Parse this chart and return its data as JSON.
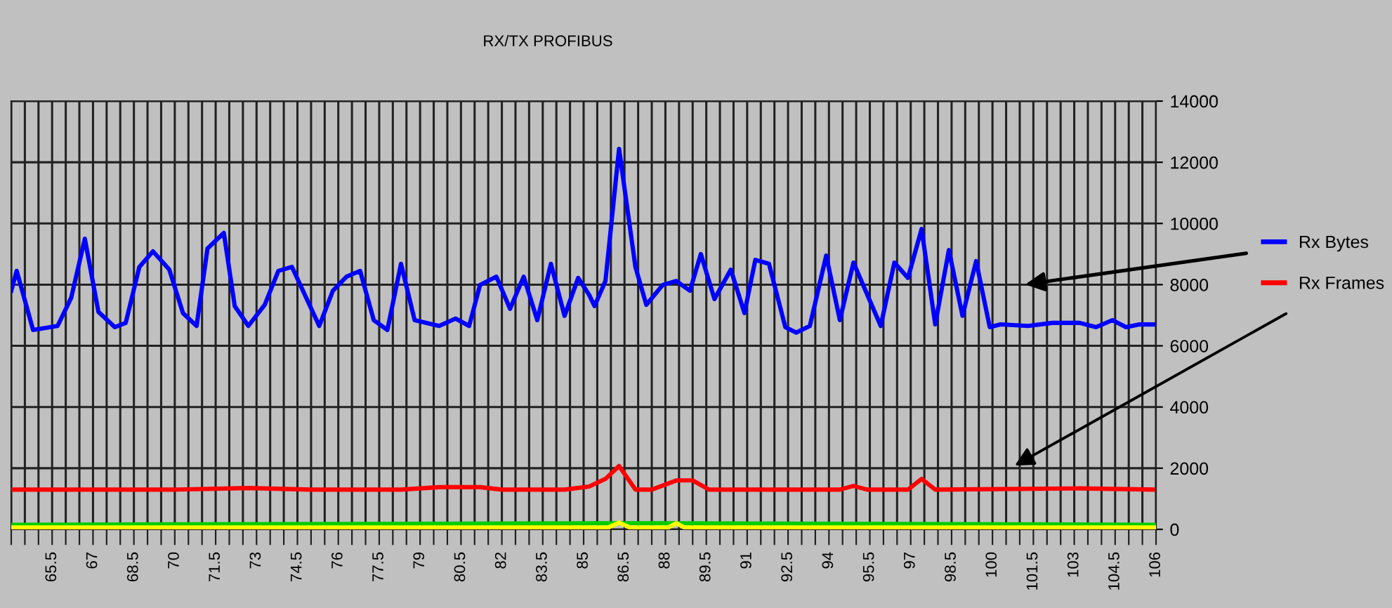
{
  "chart_data": {
    "type": "line",
    "title": "RX/TX PROFIBUS",
    "xlim": [
      64,
      106
    ],
    "ylim": [
      0,
      14000
    ],
    "yticks": [
      0,
      2000,
      4000,
      6000,
      8000,
      10000,
      12000,
      14000
    ],
    "xticks": [
      {
        "value": 64,
        "label": null
      },
      {
        "value": 64.5,
        "label": null
      },
      {
        "value": 65,
        "label": null
      },
      65.5,
      {
        "value": 66,
        "label": null
      },
      {
        "value": 66.5,
        "label": null
      },
      67,
      {
        "value": 67.5,
        "label": null
      },
      {
        "value": 68,
        "label": null
      },
      68.5,
      {
        "value": 69,
        "label": null
      },
      {
        "value": 69.5,
        "label": null
      },
      70,
      {
        "value": 70.5,
        "label": null
      },
      {
        "value": 71,
        "label": null
      },
      71.5,
      {
        "value": 72,
        "label": null
      },
      {
        "value": 72.5,
        "label": null
      },
      73,
      {
        "value": 73.5,
        "label": null
      },
      {
        "value": 74,
        "label": null
      },
      74.5,
      {
        "value": 75,
        "label": null
      },
      {
        "value": 75.5,
        "label": null
      },
      76,
      {
        "value": 76.5,
        "label": null
      },
      {
        "value": 77,
        "label": null
      },
      77.5,
      {
        "value": 78,
        "label": null
      },
      {
        "value": 78.5,
        "label": null
      },
      79,
      {
        "value": 79.5,
        "label": null
      },
      {
        "value": 80,
        "label": null
      },
      80.5,
      {
        "value": 81,
        "label": null
      },
      {
        "value": 81.5,
        "label": null
      },
      82,
      {
        "value": 82.5,
        "label": null
      },
      {
        "value": 83,
        "label": null
      },
      83.5,
      {
        "value": 84,
        "label": null
      },
      {
        "value": 84.5,
        "label": null
      },
      85,
      {
        "value": 85.5,
        "label": null
      },
      {
        "value": 86,
        "label": null
      },
      86.5,
      {
        "value": 87,
        "label": null
      },
      {
        "value": 87.5,
        "label": null
      },
      88,
      {
        "value": 88.5,
        "label": null
      },
      {
        "value": 89,
        "label": null
      },
      89.5,
      {
        "value": 90,
        "label": null
      },
      {
        "value": 90.5,
        "label": null
      },
      91,
      {
        "value": 91.5,
        "label": null
      },
      {
        "value": 92,
        "label": null
      },
      92.5,
      {
        "value": 93,
        "label": null
      },
      {
        "value": 93.5,
        "label": null
      },
      94,
      {
        "value": 94.5,
        "label": null
      },
      {
        "value": 95,
        "label": null
      },
      95.5,
      {
        "value": 96,
        "label": null
      },
      {
        "value": 96.5,
        "label": null
      },
      97,
      {
        "value": 97.5,
        "label": null
      },
      {
        "value": 98,
        "label": null
      },
      98.5,
      {
        "value": 99,
        "label": null
      },
      {
        "value": 99.5,
        "label": null
      },
      100,
      {
        "value": 100.5,
        "label": null
      },
      {
        "value": 101,
        "label": null
      },
      101.5,
      {
        "value": 102,
        "label": null
      },
      {
        "value": 102.5,
        "label": null
      },
      103,
      {
        "value": 103.5,
        "label": null
      },
      {
        "value": 104,
        "label": null
      },
      104.5,
      {
        "value": 105,
        "label": null
      },
      {
        "value": 105.5,
        "label": null
      },
      106
    ],
    "grid": true,
    "legend": "right",
    "marker": "none",
    "line_style": "solid",
    "series": [
      {
        "color": "#00cc00",
        "x": [
          64,
          86.3,
          88.4,
          106
        ],
        "values": [
          150,
          200,
          200,
          150
        ]
      },
      {
        "color": "#ffff00",
        "x": [
          64,
          85.9,
          86.3,
          86.7,
          88.1,
          88.4,
          88.7,
          106
        ],
        "values": [
          60,
          60,
          220,
          60,
          60,
          200,
          60,
          60
        ]
      },
      {
        "name": "Rx Frames",
        "color": "#ff0000",
        "x": [
          64,
          70,
          72.7,
          75,
          78.3,
          79.7,
          81.2,
          82,
          84.3,
          85.2,
          85.8,
          86.3,
          86.9,
          87.5,
          88.4,
          89,
          89.6,
          94.4,
          94.9,
          95.4,
          96.9,
          97.4,
          97.9,
          103.2,
          105.9
        ],
        "values": [
          1300,
          1300,
          1350,
          1300,
          1300,
          1380,
          1380,
          1300,
          1300,
          1400,
          1650,
          2070,
          1300,
          1300,
          1600,
          1600,
          1300,
          1300,
          1420,
          1300,
          1300,
          1650,
          1300,
          1340,
          1300
        ]
      },
      {
        "name": "Rx Bytes",
        "color": "#0000ff",
        "x": [
          64.0,
          64.2,
          64.8,
          65.7,
          66.2,
          66.7,
          67.2,
          67.8,
          68.2,
          68.7,
          69.2,
          69.8,
          70.3,
          70.8,
          71.2,
          71.8,
          72.2,
          72.7,
          73.3,
          73.8,
          74.3,
          75.3,
          75.8,
          76.3,
          76.8,
          77.3,
          77.8,
          78.3,
          78.8,
          79.7,
          80.3,
          80.8,
          81.2,
          81.8,
          82.3,
          82.8,
          83.3,
          83.8,
          84.3,
          84.8,
          85.2,
          85.4,
          85.8,
          86.3,
          86.9,
          87.3,
          87.9,
          88.4,
          88.9,
          89.3,
          89.8,
          90.4,
          90.9,
          91.3,
          91.8,
          92.4,
          92.8,
          93.3,
          93.9,
          94.4,
          94.9,
          95.9,
          96.4,
          96.9,
          97.4,
          97.9,
          98.4,
          98.9,
          99.4,
          99.9,
          100.3,
          101.3,
          102.2,
          103.2,
          103.8,
          104.4,
          104.9,
          105.4,
          105.9
        ],
        "values": [
          7800,
          8450,
          6520,
          6650,
          7570,
          9500,
          7110,
          6610,
          6750,
          8580,
          9090,
          8490,
          7070,
          6650,
          9180,
          9690,
          7300,
          6650,
          7340,
          8450,
          8580,
          6650,
          7800,
          8260,
          8450,
          6840,
          6520,
          8680,
          6840,
          6650,
          6890,
          6650,
          7990,
          8260,
          7210,
          8260,
          6840,
          8680,
          6980,
          8220,
          7670,
          7300,
          8120,
          12440,
          8580,
          7340,
          7990,
          8120,
          7800,
          9000,
          7530,
          8490,
          7070,
          8810,
          8680,
          6610,
          6430,
          6650,
          8950,
          6840,
          8720,
          6650,
          8720,
          8220,
          9820,
          6700,
          9130,
          6980,
          8770,
          6610,
          6700,
          6650,
          6750,
          6750,
          6610,
          6840,
          6610,
          6700,
          6700
        ]
      }
    ]
  }
}
